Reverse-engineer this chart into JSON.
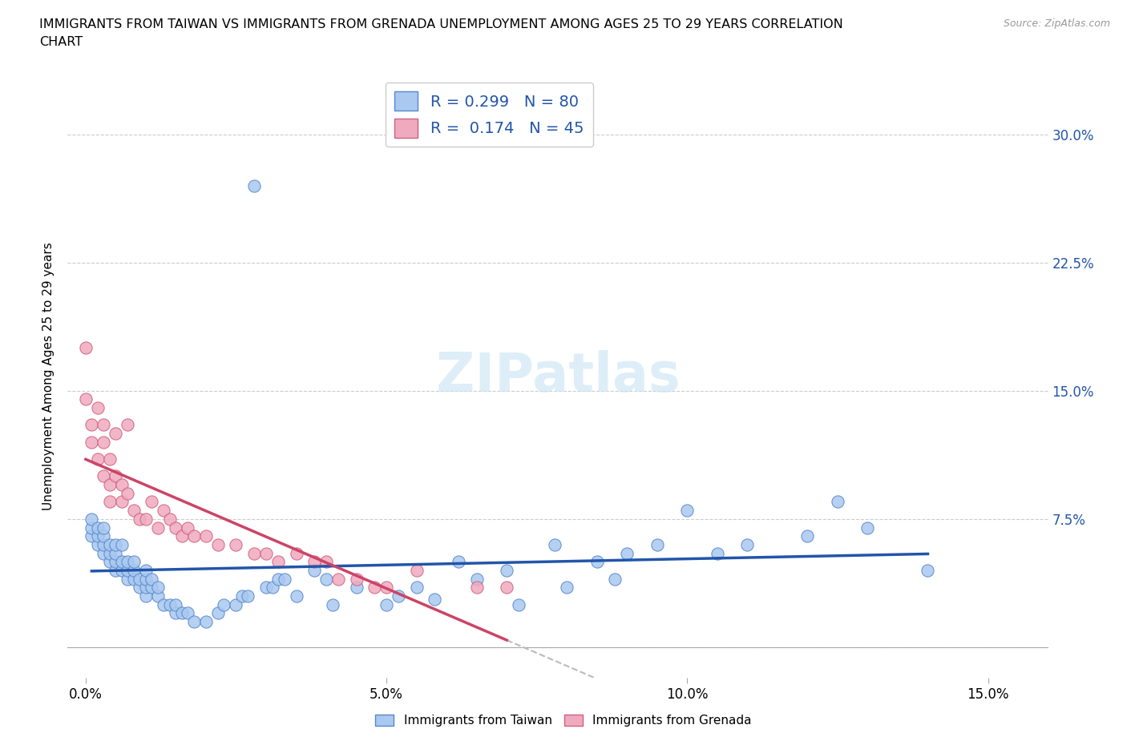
{
  "title": "IMMIGRANTS FROM TAIWAN VS IMMIGRANTS FROM GRENADA UNEMPLOYMENT AMONG AGES 25 TO 29 YEARS CORRELATION\nCHART",
  "source": "Source: ZipAtlas.com",
  "ylabel": "Unemployment Among Ages 25 to 29 years",
  "x_ticks": [
    0.0,
    0.05,
    0.1,
    0.15
  ],
  "x_tick_labels": [
    "0.0%",
    "5.0%",
    "10.0%",
    "15.0%"
  ],
  "y_ticks": [
    0.0,
    0.075,
    0.15,
    0.225,
    0.3
  ],
  "y_tick_labels": [
    "",
    "7.5%",
    "15.0%",
    "22.5%",
    "30.0%"
  ],
  "xlim": [
    -0.003,
    0.16
  ],
  "ylim": [
    -0.018,
    0.335
  ],
  "taiwan_color": "#aac8f0",
  "grenada_color": "#f0aac0",
  "taiwan_edge_color": "#5588cc",
  "grenada_edge_color": "#d06080",
  "taiwan_trend_color": "#2255aa",
  "grenada_trend_color": "#cc4466",
  "R_taiwan": 0.299,
  "N_taiwan": 80,
  "R_grenada": 0.174,
  "N_grenada": 45,
  "watermark": "ZIPatlas",
  "taiwan_x": [
    0.001,
    0.001,
    0.001,
    0.002,
    0.002,
    0.002,
    0.003,
    0.003,
    0.003,
    0.003,
    0.004,
    0.004,
    0.004,
    0.005,
    0.005,
    0.005,
    0.005,
    0.006,
    0.006,
    0.006,
    0.007,
    0.007,
    0.007,
    0.008,
    0.008,
    0.008,
    0.009,
    0.009,
    0.01,
    0.01,
    0.01,
    0.01,
    0.011,
    0.011,
    0.012,
    0.012,
    0.013,
    0.014,
    0.015,
    0.015,
    0.016,
    0.017,
    0.018,
    0.02,
    0.022,
    0.023,
    0.025,
    0.026,
    0.027,
    0.03,
    0.031,
    0.032,
    0.033,
    0.035,
    0.038,
    0.04,
    0.041,
    0.045,
    0.05,
    0.052,
    0.055,
    0.058,
    0.062,
    0.065,
    0.07,
    0.072,
    0.078,
    0.08,
    0.085,
    0.088,
    0.09,
    0.095,
    0.1,
    0.105,
    0.11,
    0.12,
    0.125,
    0.13,
    0.14,
    0.028
  ],
  "taiwan_y": [
    0.065,
    0.07,
    0.075,
    0.06,
    0.065,
    0.07,
    0.055,
    0.06,
    0.065,
    0.07,
    0.05,
    0.055,
    0.06,
    0.045,
    0.05,
    0.055,
    0.06,
    0.045,
    0.05,
    0.06,
    0.04,
    0.045,
    0.05,
    0.04,
    0.045,
    0.05,
    0.035,
    0.04,
    0.03,
    0.035,
    0.04,
    0.045,
    0.035,
    0.04,
    0.03,
    0.035,
    0.025,
    0.025,
    0.02,
    0.025,
    0.02,
    0.02,
    0.015,
    0.015,
    0.02,
    0.025,
    0.025,
    0.03,
    0.03,
    0.035,
    0.035,
    0.04,
    0.04,
    0.03,
    0.045,
    0.04,
    0.025,
    0.035,
    0.025,
    0.03,
    0.035,
    0.028,
    0.05,
    0.04,
    0.045,
    0.025,
    0.06,
    0.035,
    0.05,
    0.04,
    0.055,
    0.06,
    0.08,
    0.055,
    0.06,
    0.065,
    0.085,
    0.07,
    0.045,
    0.27
  ],
  "grenada_x": [
    0.0,
    0.0,
    0.001,
    0.001,
    0.002,
    0.002,
    0.003,
    0.003,
    0.003,
    0.004,
    0.004,
    0.004,
    0.005,
    0.005,
    0.006,
    0.006,
    0.007,
    0.007,
    0.008,
    0.009,
    0.01,
    0.011,
    0.012,
    0.013,
    0.014,
    0.015,
    0.016,
    0.017,
    0.018,
    0.02,
    0.022,
    0.025,
    0.028,
    0.03,
    0.032,
    0.035,
    0.038,
    0.04,
    0.042,
    0.045,
    0.048,
    0.05,
    0.055,
    0.065,
    0.07
  ],
  "grenada_y": [
    0.175,
    0.145,
    0.13,
    0.12,
    0.14,
    0.11,
    0.13,
    0.12,
    0.1,
    0.11,
    0.095,
    0.085,
    0.125,
    0.1,
    0.095,
    0.085,
    0.13,
    0.09,
    0.08,
    0.075,
    0.075,
    0.085,
    0.07,
    0.08,
    0.075,
    0.07,
    0.065,
    0.07,
    0.065,
    0.065,
    0.06,
    0.06,
    0.055,
    0.055,
    0.05,
    0.055,
    0.05,
    0.05,
    0.04,
    0.04,
    0.035,
    0.035,
    0.045,
    0.035,
    0.035
  ]
}
